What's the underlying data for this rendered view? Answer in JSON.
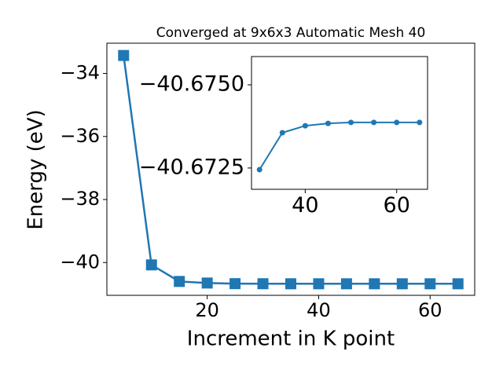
{
  "chart_data": [
    {
      "type": "line",
      "title": "Converged at 9x6x3 Automatic Mesh 40",
      "xlabel": "Increment in K point",
      "ylabel": "Energy (eV)",
      "x": [
        5,
        10,
        15,
        20,
        25,
        30,
        35,
        40,
        45,
        50,
        55,
        60,
        65
      ],
      "series": [
        {
          "color": "#1f77b4",
          "marker": "square",
          "values": [
            -33.43,
            -40.075,
            -40.6,
            -40.65,
            -40.67,
            -40.67245,
            -40.67356,
            -40.67377,
            -40.67384,
            -40.67387,
            -40.67387,
            -40.67387,
            -40.67387
          ]
        }
      ],
      "xlim": [
        2,
        68
      ],
      "ylim": [
        -41.04,
        -33.04
      ],
      "xticks": [
        20,
        40,
        60
      ],
      "yticks": [
        {
          "value": -40,
          "label": "−40"
        },
        {
          "value": -38,
          "label": "−38"
        },
        {
          "value": -36,
          "label": "−36"
        },
        {
          "value": -34,
          "label": "−34"
        }
      ]
    },
    {
      "type": "line",
      "x": [
        30,
        35,
        40,
        45,
        50,
        55,
        60,
        65
      ],
      "series": [
        {
          "color": "#1f77b4",
          "marker": "circle",
          "values": [
            -40.67245,
            -40.67356,
            -40.67377,
            -40.67384,
            -40.67387,
            -40.67387,
            -40.67387,
            -40.67387
          ]
        }
      ],
      "xlim": [
        28.25,
        66.75
      ],
      "ylim": [
        -40.67186,
        -40.67585
      ],
      "xticks": [
        40,
        60
      ],
      "yticks": [
        {
          "value": -40.6725,
          "label": "−40.6725"
        },
        {
          "value": -40.675,
          "label": "−40.6750"
        }
      ]
    }
  ]
}
